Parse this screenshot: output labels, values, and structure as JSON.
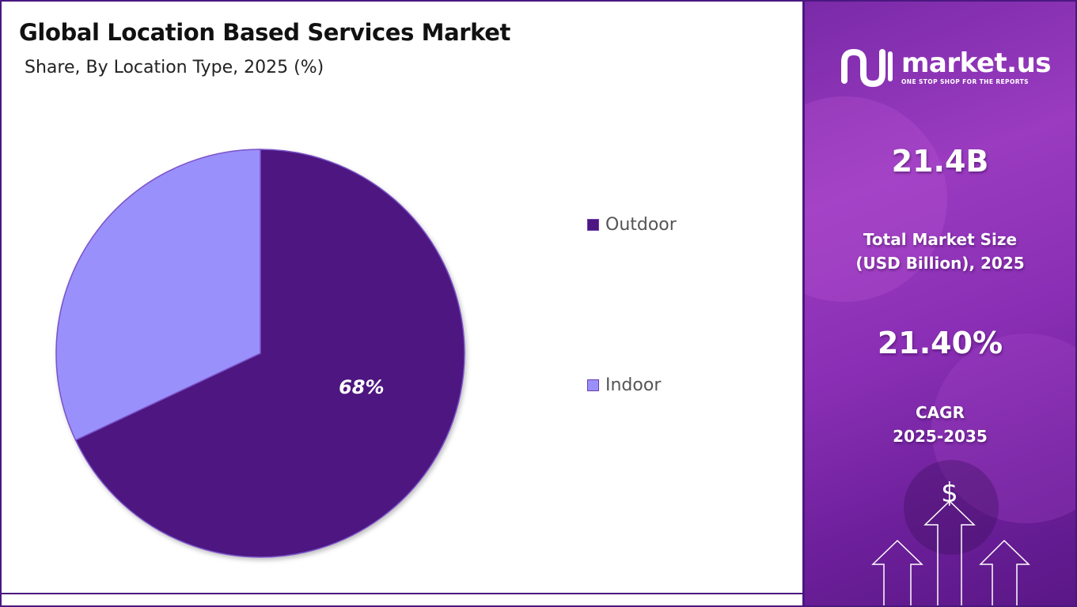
{
  "chart_data": {
    "type": "pie",
    "title": "Global Location Based Services Market",
    "subtitle": "Share, By Location Type, 2025 (%)",
    "slices": [
      {
        "label": "Outdoor",
        "value": 68,
        "color": "#4e1680",
        "data_label": "68%"
      },
      {
        "label": "Indoor",
        "value": 32,
        "color": "#9a90fc",
        "data_label": ""
      }
    ],
    "legend_placement": "right"
  },
  "brand": {
    "name": "market.us",
    "tagline": "ONE STOP SHOP FOR THE REPORTS",
    "logo_icon": "market-us-logo-icon"
  },
  "stats": {
    "market_size_value": "21.4B",
    "market_size_label_line1": "Total Market Size",
    "market_size_label_line2": "(USD Billion), 2025",
    "cagr_value": "21.40%",
    "cagr_label_line1": "CAGR",
    "cagr_label_line2": "2025-2035"
  },
  "colors": {
    "frame": "#4a1880",
    "panel_accent": "#8a2fb5"
  }
}
